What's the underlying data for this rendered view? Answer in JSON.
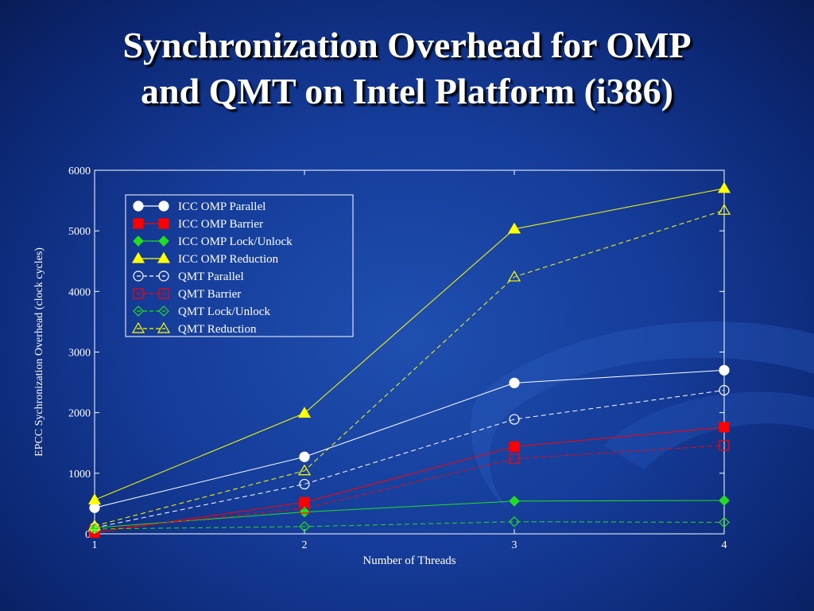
{
  "slide": {
    "title_line1": "Synchronization Overhead for OMP",
    "title_line2": "and QMT on Intel Platform (i386)"
  },
  "colors": {
    "background": "#153c99",
    "title": "#ffffff",
    "white_series": "#ffffff",
    "red_series": "#ff0000",
    "green_series": "#22dd22",
    "yellow_series": "#ffff00"
  },
  "chart_data": {
    "type": "line",
    "title": "",
    "xlabel": "Number of Threads",
    "ylabel": "EPCC Sychronization Overhead (clock cycles)",
    "x": [
      1,
      2,
      3,
      4
    ],
    "xlim": [
      1,
      4
    ],
    "ylim": [
      0,
      6000
    ],
    "yticks": [
      0,
      1000,
      2000,
      3000,
      4000,
      5000,
      6000
    ],
    "xticks": [
      1,
      2,
      3,
      4
    ],
    "grid": false,
    "legend_position": "top-left",
    "series": [
      {
        "name": "ICC OMP Parallel",
        "color": "#ffffff",
        "marker": "circle",
        "filled": true,
        "dashed": false,
        "values": [
          430,
          1270,
          2490,
          2700
        ]
      },
      {
        "name": "ICC OMP Barrier",
        "color": "#ff0000",
        "marker": "square",
        "filled": true,
        "dashed": false,
        "values": [
          20,
          520,
          1440,
          1760
        ]
      },
      {
        "name": "ICC OMP Lock/Unlock",
        "color": "#22dd22",
        "marker": "diamond",
        "filled": true,
        "dashed": false,
        "values": [
          100,
          360,
          540,
          550
        ]
      },
      {
        "name": "ICC OMP Reduction",
        "color": "#ffff00",
        "marker": "triangle",
        "filled": true,
        "dashed": false,
        "values": [
          560,
          1990,
          5030,
          5700
        ]
      },
      {
        "name": "QMT Parallel",
        "color": "#ffffff",
        "marker": "circle",
        "filled": false,
        "dashed": true,
        "values": [
          100,
          820,
          1890,
          2370
        ]
      },
      {
        "name": "QMT Barrier",
        "color": "#ff0000",
        "marker": "square",
        "filled": false,
        "dashed": true,
        "values": [
          60,
          420,
          1240,
          1460
        ]
      },
      {
        "name": "QMT Lock/Unlock",
        "color": "#22dd22",
        "marker": "diamond",
        "filled": false,
        "dashed": true,
        "values": [
          80,
          120,
          200,
          190
        ]
      },
      {
        "name": "QMT Reduction",
        "color": "#ffff00",
        "marker": "triangle",
        "filled": false,
        "dashed": true,
        "values": [
          130,
          1040,
          4240,
          5340
        ]
      }
    ]
  }
}
